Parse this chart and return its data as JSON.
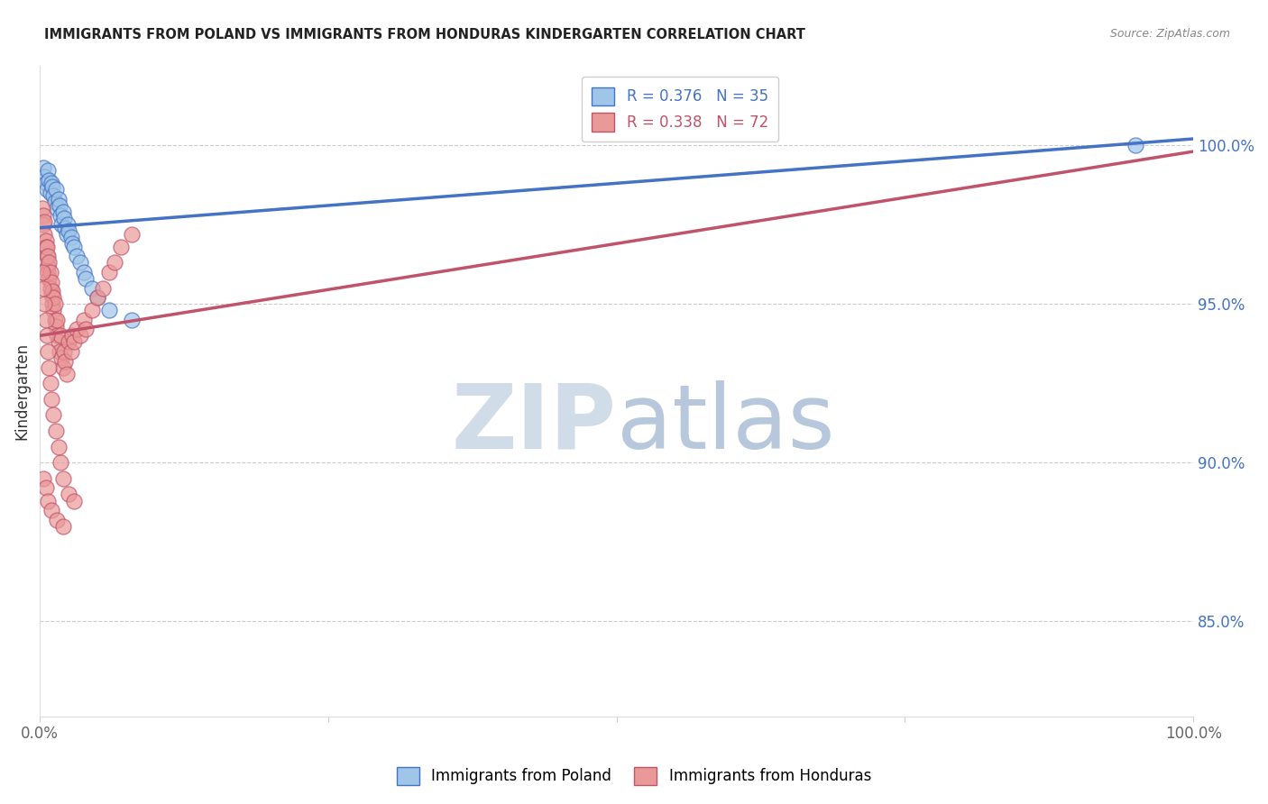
{
  "title": "IMMIGRANTS FROM POLAND VS IMMIGRANTS FROM HONDURAS KINDERGARTEN CORRELATION CHART",
  "source": "Source: ZipAtlas.com",
  "ylabel": "Kindergarten",
  "y_tick_labels": [
    "85.0%",
    "90.0%",
    "95.0%",
    "100.0%"
  ],
  "y_tick_values": [
    0.85,
    0.9,
    0.95,
    1.0
  ],
  "xlim": [
    0,
    1.0
  ],
  "ylim": [
    0.82,
    1.025
  ],
  "R_poland": 0.376,
  "N_poland": 35,
  "R_honduras": 0.338,
  "N_honduras": 72,
  "color_poland": "#9fc5e8",
  "color_honduras": "#ea9999",
  "trendline_poland": "#4472c4",
  "trendline_honduras": "#c0536a",
  "watermark_zip_color": "#c9d9ef",
  "watermark_atlas_color": "#b8cce4",
  "poland_x": [
    0.003,
    0.004,
    0.005,
    0.006,
    0.007,
    0.008,
    0.009,
    0.01,
    0.011,
    0.012,
    0.013,
    0.014,
    0.015,
    0.016,
    0.017,
    0.018,
    0.019,
    0.02,
    0.021,
    0.022,
    0.023,
    0.024,
    0.025,
    0.027,
    0.028,
    0.03,
    0.032,
    0.035,
    0.038,
    0.04,
    0.045,
    0.05,
    0.06,
    0.08,
    0.95
  ],
  "poland_y": [
    0.993,
    0.99,
    0.988,
    0.986,
    0.992,
    0.989,
    0.985,
    0.988,
    0.987,
    0.984,
    0.982,
    0.986,
    0.98,
    0.983,
    0.981,
    0.978,
    0.975,
    0.979,
    0.977,
    0.974,
    0.972,
    0.975,
    0.973,
    0.971,
    0.969,
    0.968,
    0.965,
    0.963,
    0.96,
    0.958,
    0.955,
    0.952,
    0.948,
    0.945,
    1.0
  ],
  "honduras_x": [
    0.002,
    0.003,
    0.003,
    0.004,
    0.004,
    0.005,
    0.005,
    0.006,
    0.006,
    0.007,
    0.007,
    0.007,
    0.008,
    0.008,
    0.009,
    0.009,
    0.01,
    0.01,
    0.011,
    0.011,
    0.012,
    0.012,
    0.013,
    0.013,
    0.014,
    0.015,
    0.015,
    0.016,
    0.017,
    0.018,
    0.019,
    0.02,
    0.021,
    0.022,
    0.023,
    0.025,
    0.027,
    0.028,
    0.03,
    0.032,
    0.035,
    0.038,
    0.04,
    0.045,
    0.05,
    0.055,
    0.06,
    0.065,
    0.07,
    0.08,
    0.002,
    0.003,
    0.004,
    0.005,
    0.006,
    0.007,
    0.008,
    0.009,
    0.01,
    0.012,
    0.014,
    0.016,
    0.018,
    0.02,
    0.025,
    0.03,
    0.003,
    0.005,
    0.007,
    0.01,
    0.015,
    0.02
  ],
  "honduras_y": [
    0.98,
    0.978,
    0.975,
    0.976,
    0.972,
    0.97,
    0.968,
    0.965,
    0.968,
    0.962,
    0.96,
    0.965,
    0.958,
    0.963,
    0.955,
    0.96,
    0.953,
    0.957,
    0.95,
    0.954,
    0.948,
    0.952,
    0.945,
    0.95,
    0.943,
    0.94,
    0.945,
    0.938,
    0.935,
    0.94,
    0.933,
    0.93,
    0.935,
    0.932,
    0.928,
    0.938,
    0.935,
    0.94,
    0.938,
    0.942,
    0.94,
    0.945,
    0.942,
    0.948,
    0.952,
    0.955,
    0.96,
    0.963,
    0.968,
    0.972,
    0.96,
    0.955,
    0.95,
    0.945,
    0.94,
    0.935,
    0.93,
    0.925,
    0.92,
    0.915,
    0.91,
    0.905,
    0.9,
    0.895,
    0.89,
    0.888,
    0.895,
    0.892,
    0.888,
    0.885,
    0.882,
    0.88
  ],
  "trendline_poland_x0": 0.0,
  "trendline_poland_y0": 0.974,
  "trendline_poland_x1": 1.0,
  "trendline_poland_y1": 1.002,
  "trendline_honduras_x0": 0.0,
  "trendline_honduras_y0": 0.94,
  "trendline_honduras_x1": 1.0,
  "trendline_honduras_y1": 0.998
}
